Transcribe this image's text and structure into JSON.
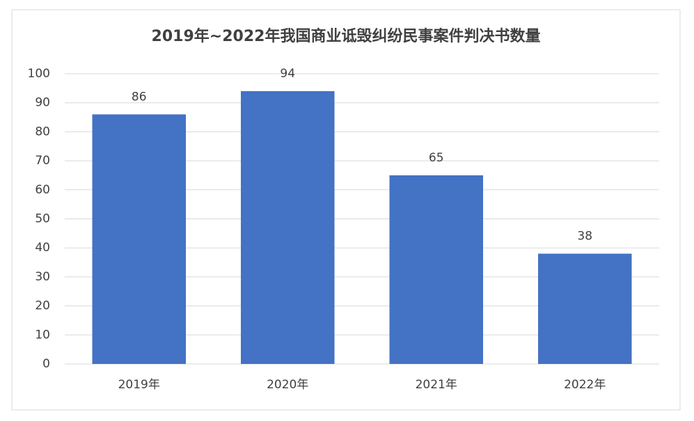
{
  "chart_data": {
    "type": "bar",
    "title": "2019年~2022年我国商业诋毁纠纷民事案件判决书数量",
    "categories": [
      "2019年",
      "2020年",
      "2021年",
      "2022年"
    ],
    "values": [
      86,
      94,
      65,
      38
    ],
    "color": "#4472c4",
    "ylim": [
      0,
      100
    ],
    "yticks": [
      0,
      10,
      20,
      30,
      40,
      50,
      60,
      70,
      80,
      90,
      100
    ],
    "grid": true
  }
}
